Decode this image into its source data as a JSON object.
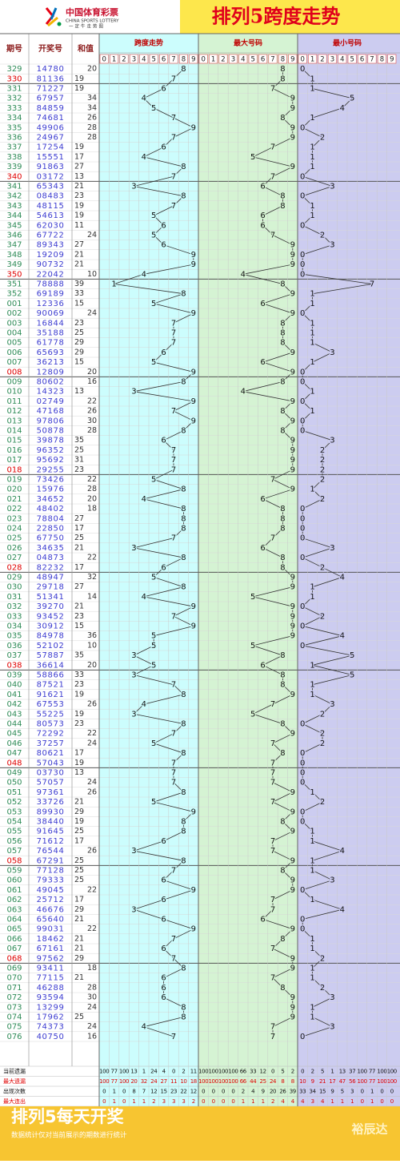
{
  "header": {
    "logo": "中国体育彩票",
    "logo_en": "CHINA SPORTS LOTTERY",
    "logo_slogan": "一定牛走势图",
    "title": "排列5跨度走势"
  },
  "columns": [
    "期号",
    "开奖号",
    "和值",
    "跨度走势",
    "最大号码",
    "最小号码"
  ],
  "digits": [
    0,
    1,
    2,
    3,
    4,
    5,
    6,
    7,
    8,
    9
  ],
  "rows": [
    {
      "p": "329",
      "n": "14780",
      "s": 20,
      "span": 8,
      "max": 8,
      "min": 0
    },
    {
      "p": "330",
      "n": "81136",
      "s": 19,
      "span": 7,
      "max": 8,
      "min": 1
    },
    {
      "p": "331",
      "n": "71227",
      "s": 19,
      "span": 6,
      "max": 7,
      "min": 1
    },
    {
      "p": "332",
      "n": "67957",
      "s": 34,
      "span": 4,
      "max": 9,
      "min": 5
    },
    {
      "p": "333",
      "n": "84859",
      "s": 34,
      "span": 5,
      "max": 9,
      "min": 4
    },
    {
      "p": "334",
      "n": "74681",
      "s": 26,
      "span": 7,
      "max": 8,
      "min": 1
    },
    {
      "p": "335",
      "n": "49906",
      "s": 28,
      "span": 9,
      "max": 9,
      "min": 0
    },
    {
      "p": "336",
      "n": "24967",
      "s": 28,
      "span": 7,
      "max": 9,
      "min": 2
    },
    {
      "p": "337",
      "n": "17254",
      "s": 19,
      "span": 6,
      "max": 7,
      "min": 1
    },
    {
      "p": "338",
      "n": "15551",
      "s": 17,
      "span": 4,
      "max": 5,
      "min": 1
    },
    {
      "p": "339",
      "n": "91863",
      "s": 27,
      "span": 8,
      "max": 9,
      "min": 1
    },
    {
      "p": "340",
      "n": "03172",
      "s": 13,
      "span": 7,
      "max": 7,
      "min": 0
    },
    {
      "p": "341",
      "n": "65343",
      "s": 21,
      "span": 3,
      "max": 6,
      "min": 3
    },
    {
      "p": "342",
      "n": "08483",
      "s": 23,
      "span": 8,
      "max": 8,
      "min": 0
    },
    {
      "p": "343",
      "n": "48115",
      "s": 19,
      "span": 7,
      "max": 8,
      "min": 1
    },
    {
      "p": "344",
      "n": "54613",
      "s": 19,
      "span": 5,
      "max": 6,
      "min": 1
    },
    {
      "p": "345",
      "n": "62030",
      "s": 11,
      "span": 6,
      "max": 6,
      "min": 0
    },
    {
      "p": "346",
      "n": "67722",
      "s": 24,
      "span": 5,
      "max": 7,
      "min": 2
    },
    {
      "p": "347",
      "n": "89343",
      "s": 27,
      "span": 6,
      "max": 9,
      "min": 3
    },
    {
      "p": "348",
      "n": "19209",
      "s": 21,
      "span": 9,
      "max": 9,
      "min": 0
    },
    {
      "p": "349",
      "n": "90732",
      "s": 21,
      "span": 9,
      "max": 9,
      "min": 0
    },
    {
      "p": "350",
      "n": "22042",
      "s": 10,
      "span": 4,
      "max": 4,
      "min": 0
    },
    {
      "p": "351",
      "n": "78888",
      "s": 39,
      "span": 1,
      "max": 8,
      "min": 7
    },
    {
      "p": "352",
      "n": "69189",
      "s": 33,
      "span": 8,
      "max": 9,
      "min": 1
    },
    {
      "p": "001",
      "n": "12336",
      "s": 15,
      "span": 5,
      "max": 6,
      "min": 1
    },
    {
      "p": "002",
      "n": "90069",
      "s": 24,
      "span": 9,
      "max": 9,
      "min": 0
    },
    {
      "p": "003",
      "n": "16844",
      "s": 23,
      "span": 7,
      "max": 8,
      "min": 1
    },
    {
      "p": "004",
      "n": "35188",
      "s": 25,
      "span": 7,
      "max": 8,
      "min": 1
    },
    {
      "p": "005",
      "n": "61778",
      "s": 29,
      "span": 7,
      "max": 8,
      "min": 1
    },
    {
      "p": "006",
      "n": "65693",
      "s": 29,
      "span": 6,
      "max": 9,
      "min": 3
    },
    {
      "p": "007",
      "n": "36213",
      "s": 15,
      "span": 5,
      "max": 6,
      "min": 1
    },
    {
      "p": "008",
      "n": "12809",
      "s": 20,
      "span": 9,
      "max": 9,
      "min": 0
    },
    {
      "p": "009",
      "n": "80602",
      "s": 16,
      "span": 8,
      "max": 8,
      "min": 0
    },
    {
      "p": "010",
      "n": "14323",
      "s": 13,
      "span": 3,
      "max": 4,
      "min": 1
    },
    {
      "p": "011",
      "n": "02749",
      "s": 22,
      "span": 9,
      "max": 9,
      "min": 0
    },
    {
      "p": "012",
      "n": "47168",
      "s": 26,
      "span": 7,
      "max": 8,
      "min": 1
    },
    {
      "p": "013",
      "n": "97806",
      "s": 30,
      "span": 9,
      "max": 9,
      "min": 0
    },
    {
      "p": "014",
      "n": "50878",
      "s": 28,
      "span": 8,
      "max": 8,
      "min": 0
    },
    {
      "p": "015",
      "n": "39878",
      "s": 35,
      "span": 6,
      "max": 9,
      "min": 3
    },
    {
      "p": "016",
      "n": "96352",
      "s": 25,
      "span": 7,
      "max": 9,
      "min": 2
    },
    {
      "p": "017",
      "n": "95692",
      "s": 31,
      "span": 7,
      "max": 9,
      "min": 2
    },
    {
      "p": "018",
      "n": "29255",
      "s": 23,
      "span": 7,
      "max": 9,
      "min": 2
    },
    {
      "p": "019",
      "n": "73426",
      "s": 22,
      "span": 5,
      "max": 7,
      "min": 2
    },
    {
      "p": "020",
      "n": "15976",
      "s": 28,
      "span": 8,
      "max": 9,
      "min": 1
    },
    {
      "p": "021",
      "n": "34652",
      "s": 20,
      "span": 4,
      "max": 6,
      "min": 2
    },
    {
      "p": "022",
      "n": "48402",
      "s": 18,
      "span": 8,
      "max": 8,
      "min": 0
    },
    {
      "p": "023",
      "n": "78804",
      "s": 27,
      "span": 8,
      "max": 8,
      "min": 0
    },
    {
      "p": "024",
      "n": "22850",
      "s": 17,
      "span": 8,
      "max": 8,
      "min": 0
    },
    {
      "p": "025",
      "n": "67750",
      "s": 25,
      "span": 7,
      "max": 7,
      "min": 0
    },
    {
      "p": "026",
      "n": "34635",
      "s": 21,
      "span": 3,
      "max": 6,
      "min": 3
    },
    {
      "p": "027",
      "n": "04873",
      "s": 22,
      "span": 8,
      "max": 8,
      "min": 0
    },
    {
      "p": "028",
      "n": "82232",
      "s": 17,
      "span": 6,
      "max": 8,
      "min": 2
    },
    {
      "p": "029",
      "n": "48947",
      "s": 32,
      "span": 5,
      "max": 9,
      "min": 4
    },
    {
      "p": "030",
      "n": "29718",
      "s": 27,
      "span": 8,
      "max": 9,
      "min": 1
    },
    {
      "p": "031",
      "n": "51341",
      "s": 14,
      "span": 4,
      "max": 5,
      "min": 1
    },
    {
      "p": "032",
      "n": "39270",
      "s": 21,
      "span": 9,
      "max": 9,
      "min": 0
    },
    {
      "p": "033",
      "n": "93452",
      "s": 23,
      "span": 7,
      "max": 9,
      "min": 2
    },
    {
      "p": "034",
      "n": "30912",
      "s": 15,
      "span": 9,
      "max": 9,
      "min": 0
    },
    {
      "p": "035",
      "n": "84978",
      "s": 36,
      "span": 5,
      "max": 9,
      "min": 4
    },
    {
      "p": "036",
      "n": "52102",
      "s": 10,
      "span": 5,
      "max": 5,
      "min": 0
    },
    {
      "p": "037",
      "n": "57887",
      "s": 35,
      "span": 3,
      "max": 8,
      "min": 5
    },
    {
      "p": "038",
      "n": "36614",
      "s": 20,
      "span": 5,
      "max": 6,
      "min": 1
    },
    {
      "p": "039",
      "n": "58866",
      "s": 33,
      "span": 3,
      "max": 8,
      "min": 5
    },
    {
      "p": "040",
      "n": "87521",
      "s": 23,
      "span": 7,
      "max": 8,
      "min": 1
    },
    {
      "p": "041",
      "n": "91621",
      "s": 19,
      "span": 8,
      "max": 9,
      "min": 1
    },
    {
      "p": "042",
      "n": "67553",
      "s": 26,
      "span": 4,
      "max": 7,
      "min": 3
    },
    {
      "p": "043",
      "n": "55225",
      "s": 19,
      "span": 3,
      "max": 5,
      "min": 2
    },
    {
      "p": "044",
      "n": "80573",
      "s": 23,
      "span": 8,
      "max": 8,
      "min": 0
    },
    {
      "p": "045",
      "n": "72292",
      "s": 22,
      "span": 7,
      "max": 9,
      "min": 2
    },
    {
      "p": "046",
      "n": "37257",
      "s": 24,
      "span": 5,
      "max": 7,
      "min": 2
    },
    {
      "p": "047",
      "n": "80621",
      "s": 17,
      "span": 8,
      "max": 8,
      "min": 0
    },
    {
      "p": "048",
      "n": "57043",
      "s": 19,
      "span": 7,
      "max": 7,
      "min": 0
    },
    {
      "p": "049",
      "n": "03730",
      "s": 13,
      "span": 7,
      "max": 7,
      "min": 0
    },
    {
      "p": "050",
      "n": "57057",
      "s": 24,
      "span": 7,
      "max": 7,
      "min": 0
    },
    {
      "p": "051",
      "n": "97361",
      "s": 26,
      "span": 8,
      "max": 9,
      "min": 1
    },
    {
      "p": "052",
      "n": "33726",
      "s": 21,
      "span": 5,
      "max": 7,
      "min": 2
    },
    {
      "p": "053",
      "n": "89930",
      "s": 29,
      "span": 9,
      "max": 9,
      "min": 0
    },
    {
      "p": "054",
      "n": "38440",
      "s": 19,
      "span": 8,
      "max": 8,
      "min": 0
    },
    {
      "p": "055",
      "n": "91645",
      "s": 25,
      "span": 8,
      "max": 9,
      "min": 1
    },
    {
      "p": "056",
      "n": "71612",
      "s": 17,
      "span": 6,
      "max": 7,
      "min": 1
    },
    {
      "p": "057",
      "n": "76544",
      "s": 26,
      "span": 3,
      "max": 7,
      "min": 4
    },
    {
      "p": "058",
      "n": "67291",
      "s": 25,
      "span": 8,
      "max": 9,
      "min": 1
    },
    {
      "p": "059",
      "n": "77128",
      "s": 25,
      "span": 7,
      "max": 8,
      "min": 1
    },
    {
      "p": "060",
      "n": "79333",
      "s": 25,
      "span": 6,
      "max": 9,
      "min": 3
    },
    {
      "p": "061",
      "n": "49045",
      "s": 22,
      "span": 9,
      "max": 9,
      "min": 0
    },
    {
      "p": "062",
      "n": "25712",
      "s": 17,
      "span": 6,
      "max": 7,
      "min": 1
    },
    {
      "p": "063",
      "n": "46676",
      "s": 29,
      "span": 3,
      "max": 7,
      "min": 4
    },
    {
      "p": "064",
      "n": "65640",
      "s": 21,
      "span": 6,
      "max": 6,
      "min": 0
    },
    {
      "p": "065",
      "n": "99031",
      "s": 22,
      "span": 9,
      "max": 9,
      "min": 0
    },
    {
      "p": "066",
      "n": "18462",
      "s": 21,
      "span": 7,
      "max": 8,
      "min": 1
    },
    {
      "p": "067",
      "n": "67161",
      "s": 21,
      "span": 6,
      "max": 7,
      "min": 1
    },
    {
      "p": "068",
      "n": "97562",
      "s": 29,
      "span": 7,
      "max": 9,
      "min": 2
    },
    {
      "p": "069",
      "n": "93411",
      "s": 18,
      "span": 8,
      "max": 9,
      "min": 1
    },
    {
      "p": "070",
      "n": "77115",
      "s": 21,
      "span": 6,
      "max": 7,
      "min": 1
    },
    {
      "p": "071",
      "n": "46288",
      "s": 28,
      "span": 6,
      "max": 8,
      "min": 2
    },
    {
      "p": "072",
      "n": "93594",
      "s": 30,
      "span": 6,
      "max": 9,
      "min": 3
    },
    {
      "p": "073",
      "n": "13299",
      "s": 24,
      "span": 8,
      "max": 9,
      "min": 1
    },
    {
      "p": "074",
      "n": "17962",
      "s": 25,
      "span": 8,
      "max": 9,
      "min": 1
    },
    {
      "p": "075",
      "n": "74373",
      "s": 24,
      "span": 4,
      "max": 7,
      "min": 3
    },
    {
      "p": "076",
      "n": "40750",
      "s": 16,
      "span": 7,
      "max": 7,
      "min": 0
    }
  ],
  "stats": {
    "labels": [
      "当前遗漏",
      "最大遗漏",
      "出现次数",
      "最大连出"
    ],
    "values": [
      [
        100,
        77,
        100,
        13,
        1,
        24,
        4,
        0,
        2,
        11,
        100,
        100,
        100,
        100,
        66,
        33,
        12,
        0,
        5,
        2,
        0,
        2,
        5,
        1,
        13,
        37,
        100,
        77,
        100,
        100
      ],
      [
        100,
        77,
        100,
        20,
        32,
        24,
        27,
        11,
        10,
        18,
        100,
        100,
        100,
        100,
        66,
        44,
        25,
        24,
        8,
        8,
        10,
        9,
        21,
        17,
        47,
        56,
        100,
        77,
        100,
        100
      ],
      [
        0,
        1,
        0,
        8,
        7,
        12,
        15,
        23,
        22,
        12,
        0,
        0,
        0,
        0,
        2,
        4,
        9,
        20,
        26,
        39,
        33,
        34,
        15,
        9,
        5,
        3,
        0,
        1,
        0,
        0
      ],
      [
        0,
        1,
        0,
        1,
        1,
        2,
        3,
        3,
        3,
        2,
        0,
        0,
        0,
        0,
        1,
        1,
        1,
        2,
        4,
        4,
        4,
        3,
        4,
        1,
        1,
        1,
        0,
        1,
        0,
        0
      ]
    ]
  },
  "footer": {
    "title": "排列5每天开奖",
    "note": "数据统计仅对当前展示的期数进行统计",
    "brand": "裕辰达"
  }
}
